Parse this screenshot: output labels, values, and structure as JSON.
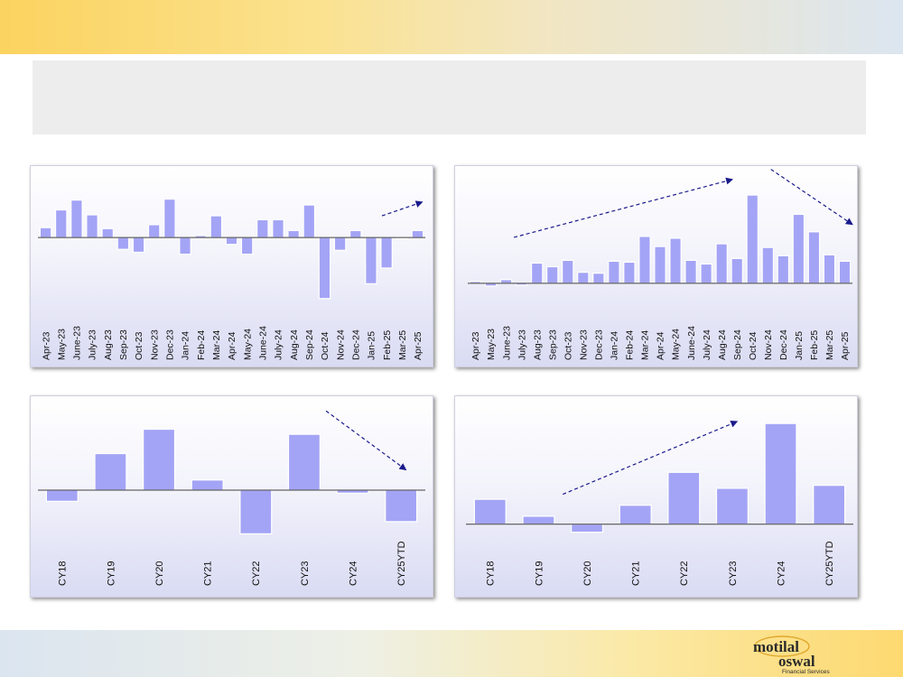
{
  "colors": {
    "bar_fill": "#a4a4f6",
    "bar_stroke": "#ffffff",
    "axis": "#404040",
    "trend_arrow": "#1a1a8c",
    "header_box": "#ededed"
  },
  "chart_data": [
    {
      "type": "bar",
      "title": "",
      "categories": [
        "Apr-23",
        "May-23",
        "June-23",
        "July-23",
        "Aug-23",
        "Sep-23",
        "Oct-23",
        "Nov-23",
        "Dec-23",
        "Jan-24",
        "Feb-24",
        "Mar-24",
        "Apr-24",
        "May-24",
        "June-24",
        "July-24",
        "Aug-24",
        "Sep-24",
        "Oct-24",
        "Nov-24",
        "Dec-24",
        "Jan-25",
        "Feb-25",
        "Mar-25",
        "Apr-25"
      ],
      "values": [
        10,
        28,
        38,
        23,
        9,
        -12,
        -15,
        13,
        39,
        -17,
        2,
        22,
        -7,
        -17,
        18,
        18,
        7,
        33,
        -62,
        -13,
        7,
        -47,
        -31,
        0,
        7
      ],
      "ylim": [
        -65,
        45
      ],
      "grid": false,
      "trend_arrows": [
        {
          "from": [
            22.2,
            22
          ],
          "to": [
            24.8,
            36
          ]
        }
      ]
    },
    {
      "type": "bar",
      "title": "",
      "categories": [
        "Apr-23",
        "May-23",
        "June-23",
        "July-23",
        "Aug-23",
        "Sep-23",
        "Oct-23",
        "Nov-23",
        "Dec-23",
        "Jan-24",
        "Feb-24",
        "Mar-24",
        "Apr-24",
        "May-24",
        "June-24",
        "July-24",
        "Aug-24",
        "Sep-24",
        "Oct-24",
        "Nov-24",
        "Dec-24",
        "Jan-25",
        "Feb-25",
        "Mar-25",
        "Apr-25"
      ],
      "values": [
        2,
        -3,
        4,
        -2,
        22,
        18,
        25,
        12,
        11,
        24,
        23,
        51,
        40,
        49,
        25,
        21,
        43,
        27,
        96,
        39,
        30,
        75,
        56,
        31,
        24
      ],
      "ylim": [
        -8,
        100
      ],
      "grid": false,
      "trend_arrows": [
        {
          "from": [
            3,
            50
          ],
          "to": [
            17.2,
            113
          ]
        },
        {
          "from": [
            19.7,
            124
          ],
          "to": [
            25,
            64
          ]
        }
      ]
    },
    {
      "type": "bar",
      "title": "",
      "categories": [
        "CY18",
        "CY19",
        "CY20",
        "CY21",
        "CY22",
        "CY23",
        "CY24",
        "CY25YTD"
      ],
      "values": [
        -11,
        36,
        60,
        10,
        -43,
        55,
        -3,
        -31
      ],
      "ylim": [
        -48,
        64
      ],
      "grid": false,
      "trend_arrows": [
        {
          "from": [
            5.95,
            78
          ],
          "to": [
            7.6,
            20
          ]
        }
      ]
    },
    {
      "type": "bar",
      "title": "",
      "categories": [
        "CY18",
        "CY19",
        "CY20",
        "CY21",
        "CY22",
        "CY23",
        "CY24",
        "CY25YTD"
      ],
      "values": [
        25,
        8,
        -8,
        19,
        52,
        36,
        101,
        39
      ],
      "ylim": [
        -12,
        112
      ],
      "grid": false,
      "trend_arrows": [
        {
          "from": [
            2.0,
            30
          ],
          "to": [
            5.6,
            103
          ]
        }
      ]
    }
  ],
  "logo": {
    "line1": "motilal",
    "line2": "oswal",
    "line3": "Financial Services"
  }
}
